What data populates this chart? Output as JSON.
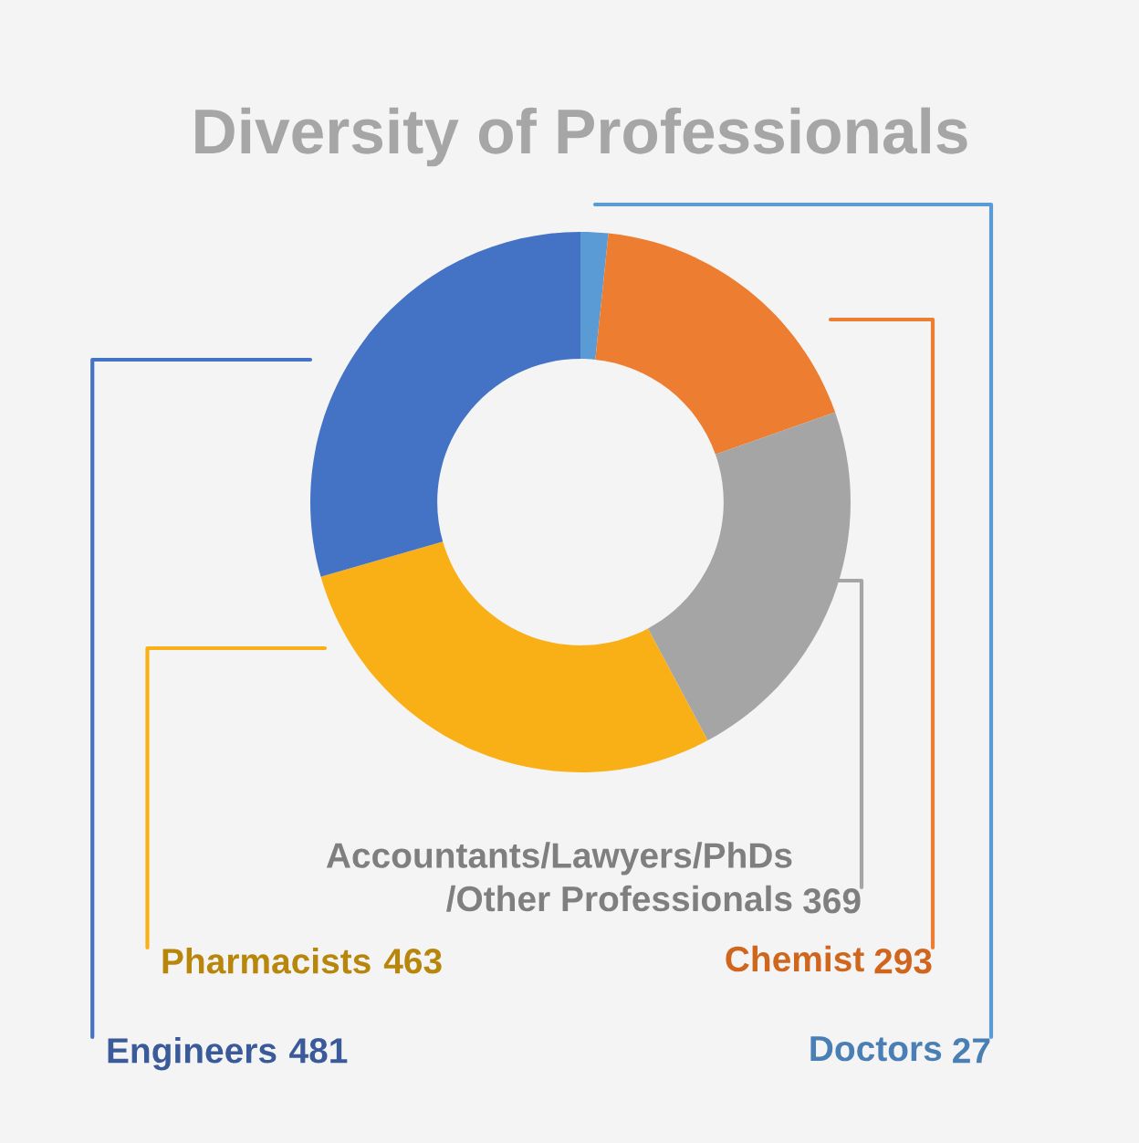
{
  "chart_data": {
    "type": "donut",
    "title": "Diversity of Professionals",
    "categories": [
      "Doctors",
      "Chemist",
      "Accountants/Lawyers/PhDs\n/Other Professionals",
      "Pharmacists",
      "Engineers"
    ],
    "values": [
      27,
      293,
      369,
      463,
      481
    ],
    "colors": [
      "#5b9bd5",
      "#ed7d31",
      "#a5a5a5",
      "#f9b016",
      "#4472c4"
    ],
    "data_labels": true,
    "legend": false
  }
}
